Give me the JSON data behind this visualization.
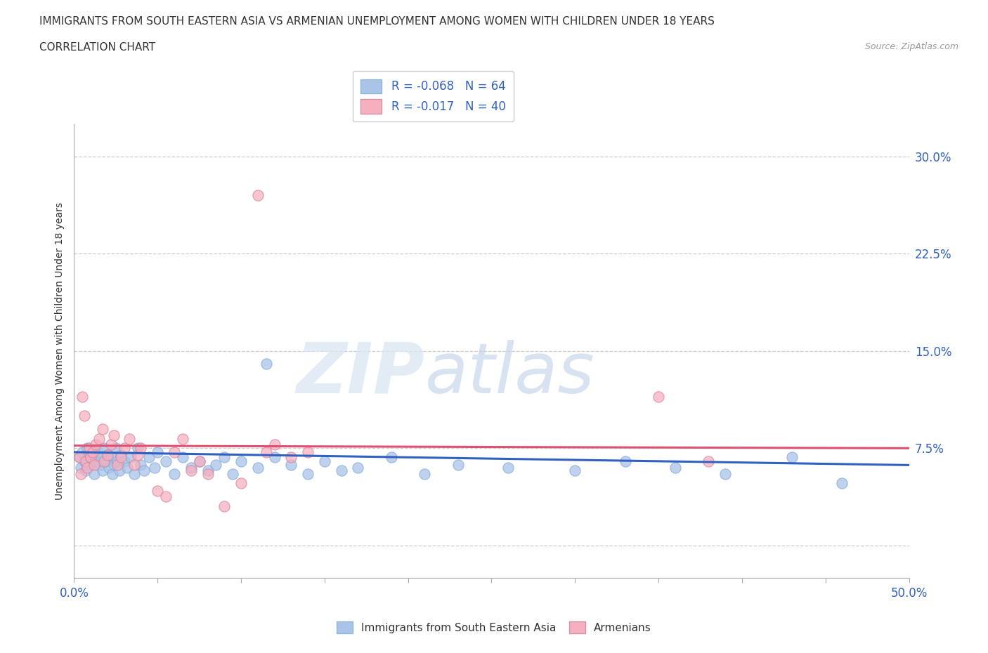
{
  "title_line1": "IMMIGRANTS FROM SOUTH EASTERN ASIA VS ARMENIAN UNEMPLOYMENT AMONG WOMEN WITH CHILDREN UNDER 18 YEARS",
  "title_line2": "CORRELATION CHART",
  "source_text": "Source: ZipAtlas.com",
  "ylabel": "Unemployment Among Women with Children Under 18 years",
  "xlim": [
    0.0,
    0.5
  ],
  "ylim": [
    -0.025,
    0.325
  ],
  "yticks": [
    0.0,
    0.075,
    0.15,
    0.225,
    0.3
  ],
  "ytick_labels": [
    "",
    "7.5%",
    "15.0%",
    "22.5%",
    "30.0%"
  ],
  "legend_r_blue": "R = -0.068",
  "legend_n_blue": "N = 64",
  "legend_r_pink": "R = -0.017",
  "legend_n_pink": "N = 40",
  "blue_color": "#aac4e8",
  "pink_color": "#f5b0c0",
  "blue_line_color": "#3060c0",
  "pink_line_color": "#e05070",
  "watermark_zip": "ZIP",
  "watermark_atlas": "atlas",
  "blue_scatter": [
    [
      0.003,
      0.068
    ],
    [
      0.004,
      0.06
    ],
    [
      0.005,
      0.072
    ],
    [
      0.006,
      0.065
    ],
    [
      0.007,
      0.058
    ],
    [
      0.008,
      0.075
    ],
    [
      0.009,
      0.068
    ],
    [
      0.01,
      0.062
    ],
    [
      0.011,
      0.07
    ],
    [
      0.012,
      0.055
    ],
    [
      0.013,
      0.065
    ],
    [
      0.014,
      0.072
    ],
    [
      0.015,
      0.068
    ],
    [
      0.016,
      0.062
    ],
    [
      0.017,
      0.058
    ],
    [
      0.018,
      0.075
    ],
    [
      0.019,
      0.065
    ],
    [
      0.02,
      0.07
    ],
    [
      0.021,
      0.06
    ],
    [
      0.022,
      0.068
    ],
    [
      0.023,
      0.055
    ],
    [
      0.024,
      0.062
    ],
    [
      0.025,
      0.075
    ],
    [
      0.026,
      0.065
    ],
    [
      0.027,
      0.058
    ],
    [
      0.028,
      0.07
    ],
    [
      0.03,
      0.065
    ],
    [
      0.032,
      0.06
    ],
    [
      0.034,
      0.068
    ],
    [
      0.036,
      0.055
    ],
    [
      0.038,
      0.075
    ],
    [
      0.04,
      0.062
    ],
    [
      0.042,
      0.058
    ],
    [
      0.045,
      0.068
    ],
    [
      0.048,
      0.06
    ],
    [
      0.05,
      0.072
    ],
    [
      0.055,
      0.065
    ],
    [
      0.06,
      0.055
    ],
    [
      0.065,
      0.068
    ],
    [
      0.07,
      0.06
    ],
    [
      0.075,
      0.065
    ],
    [
      0.08,
      0.058
    ],
    [
      0.085,
      0.062
    ],
    [
      0.09,
      0.068
    ],
    [
      0.095,
      0.055
    ],
    [
      0.1,
      0.065
    ],
    [
      0.11,
      0.06
    ],
    [
      0.115,
      0.14
    ],
    [
      0.12,
      0.068
    ],
    [
      0.13,
      0.062
    ],
    [
      0.14,
      0.055
    ],
    [
      0.15,
      0.065
    ],
    [
      0.16,
      0.058
    ],
    [
      0.17,
      0.06
    ],
    [
      0.19,
      0.068
    ],
    [
      0.21,
      0.055
    ],
    [
      0.23,
      0.062
    ],
    [
      0.26,
      0.06
    ],
    [
      0.3,
      0.058
    ],
    [
      0.33,
      0.065
    ],
    [
      0.36,
      0.06
    ],
    [
      0.39,
      0.055
    ],
    [
      0.43,
      0.068
    ],
    [
      0.46,
      0.048
    ]
  ],
  "pink_scatter": [
    [
      0.003,
      0.068
    ],
    [
      0.004,
      0.055
    ],
    [
      0.005,
      0.115
    ],
    [
      0.006,
      0.1
    ],
    [
      0.007,
      0.065
    ],
    [
      0.008,
      0.06
    ],
    [
      0.009,
      0.075
    ],
    [
      0.01,
      0.068
    ],
    [
      0.011,
      0.072
    ],
    [
      0.012,
      0.062
    ],
    [
      0.013,
      0.078
    ],
    [
      0.015,
      0.082
    ],
    [
      0.017,
      0.09
    ],
    [
      0.018,
      0.065
    ],
    [
      0.02,
      0.07
    ],
    [
      0.022,
      0.078
    ],
    [
      0.024,
      0.085
    ],
    [
      0.026,
      0.062
    ],
    [
      0.028,
      0.068
    ],
    [
      0.03,
      0.075
    ],
    [
      0.033,
      0.082
    ],
    [
      0.036,
      0.062
    ],
    [
      0.038,
      0.07
    ],
    [
      0.04,
      0.075
    ],
    [
      0.05,
      0.042
    ],
    [
      0.055,
      0.038
    ],
    [
      0.06,
      0.072
    ],
    [
      0.065,
      0.082
    ],
    [
      0.07,
      0.058
    ],
    [
      0.075,
      0.065
    ],
    [
      0.08,
      0.055
    ],
    [
      0.09,
      0.03
    ],
    [
      0.1,
      0.048
    ],
    [
      0.11,
      0.27
    ],
    [
      0.115,
      0.072
    ],
    [
      0.12,
      0.078
    ],
    [
      0.13,
      0.068
    ],
    [
      0.14,
      0.072
    ],
    [
      0.35,
      0.115
    ],
    [
      0.38,
      0.065
    ]
  ],
  "blue_trend": [
    0.0,
    0.5,
    0.072,
    0.062
  ],
  "pink_trend": [
    0.0,
    0.5,
    0.077,
    0.075
  ]
}
